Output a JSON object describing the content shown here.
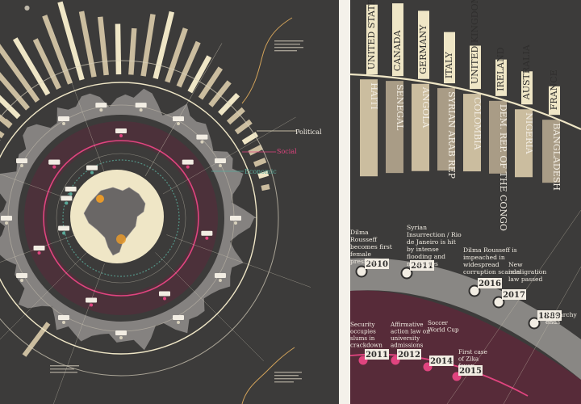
{
  "colors": {
    "background": "#3c3b3a",
    "cream": "#e8dfc2",
    "bar_light": "#efe6c6",
    "bar_mid": "#cbbd9f",
    "bar_dark": "#a99c86",
    "band_gray": "#8d8b88",
    "social_pink": "#e0447f",
    "economic_teal": "#5aaa9a",
    "orange": "#e89a2b",
    "text_light": "#f2ede3"
  },
  "left": {
    "legend": {
      "political": "Political",
      "social": "Social",
      "economic": "Economic"
    }
  },
  "right": {
    "countries": [
      {
        "name": "UNITED STATES OF AMERICA",
        "level": 0.95,
        "shade": "light"
      },
      {
        "name": "CANADA",
        "level": 1.0,
        "shade": "light"
      },
      {
        "name": "GERMANY",
        "level": 0.92,
        "shade": "light"
      },
      {
        "name": "ITALY",
        "level": 0.62,
        "shade": "light"
      },
      {
        "name": "UNITED KINGDOM",
        "level": 0.48,
        "shade": "light"
      },
      {
        "name": "IRELAND",
        "level": 0.36,
        "shade": "light"
      },
      {
        "name": "AUSTRALIA",
        "level": 0.3,
        "shade": "light"
      },
      {
        "name": "FRANCE",
        "level": 0.22,
        "shade": "light"
      }
    ],
    "outer_countries": [
      {
        "name": "HAITI",
        "shade": "mid"
      },
      {
        "name": "SENEGAL",
        "shade": "mid"
      },
      {
        "name": "ANGOLA",
        "shade": "mid"
      },
      {
        "name": "SYRIAN ARAB REP",
        "shade": "mid"
      },
      {
        "name": "COLOMBIA",
        "shade": "mid"
      },
      {
        "name": "DEM. REP. OF THE CONGO",
        "shade": "mid"
      },
      {
        "name": "NIGERIA",
        "shade": "mid"
      },
      {
        "name": "BANGLADESH",
        "shade": "mid"
      }
    ],
    "political_events": [
      {
        "year": "2010",
        "text": "Dilma Rousseff becomes first female president"
      },
      {
        "year": "2011",
        "text": "Syrian Insurrection / Rio de Janeiro is hit by intense flooding and mudslides"
      },
      {
        "year": "2016",
        "text": "Dilma Rousseff is impeached in widespread corruption scandal"
      },
      {
        "year": "2017",
        "text": "New immigration law passed"
      },
      {
        "year": "1889",
        "text": "Monarchy ends"
      }
    ],
    "social_events": [
      {
        "year": "2011",
        "text": "Security occupies slums in crackdown"
      },
      {
        "year": "2012",
        "text": "Affirmative action law on university admissions"
      },
      {
        "year": "2014",
        "text": "Soccer World Cup"
      },
      {
        "year": "2015",
        "text": "First case of Zika fever"
      }
    ]
  }
}
